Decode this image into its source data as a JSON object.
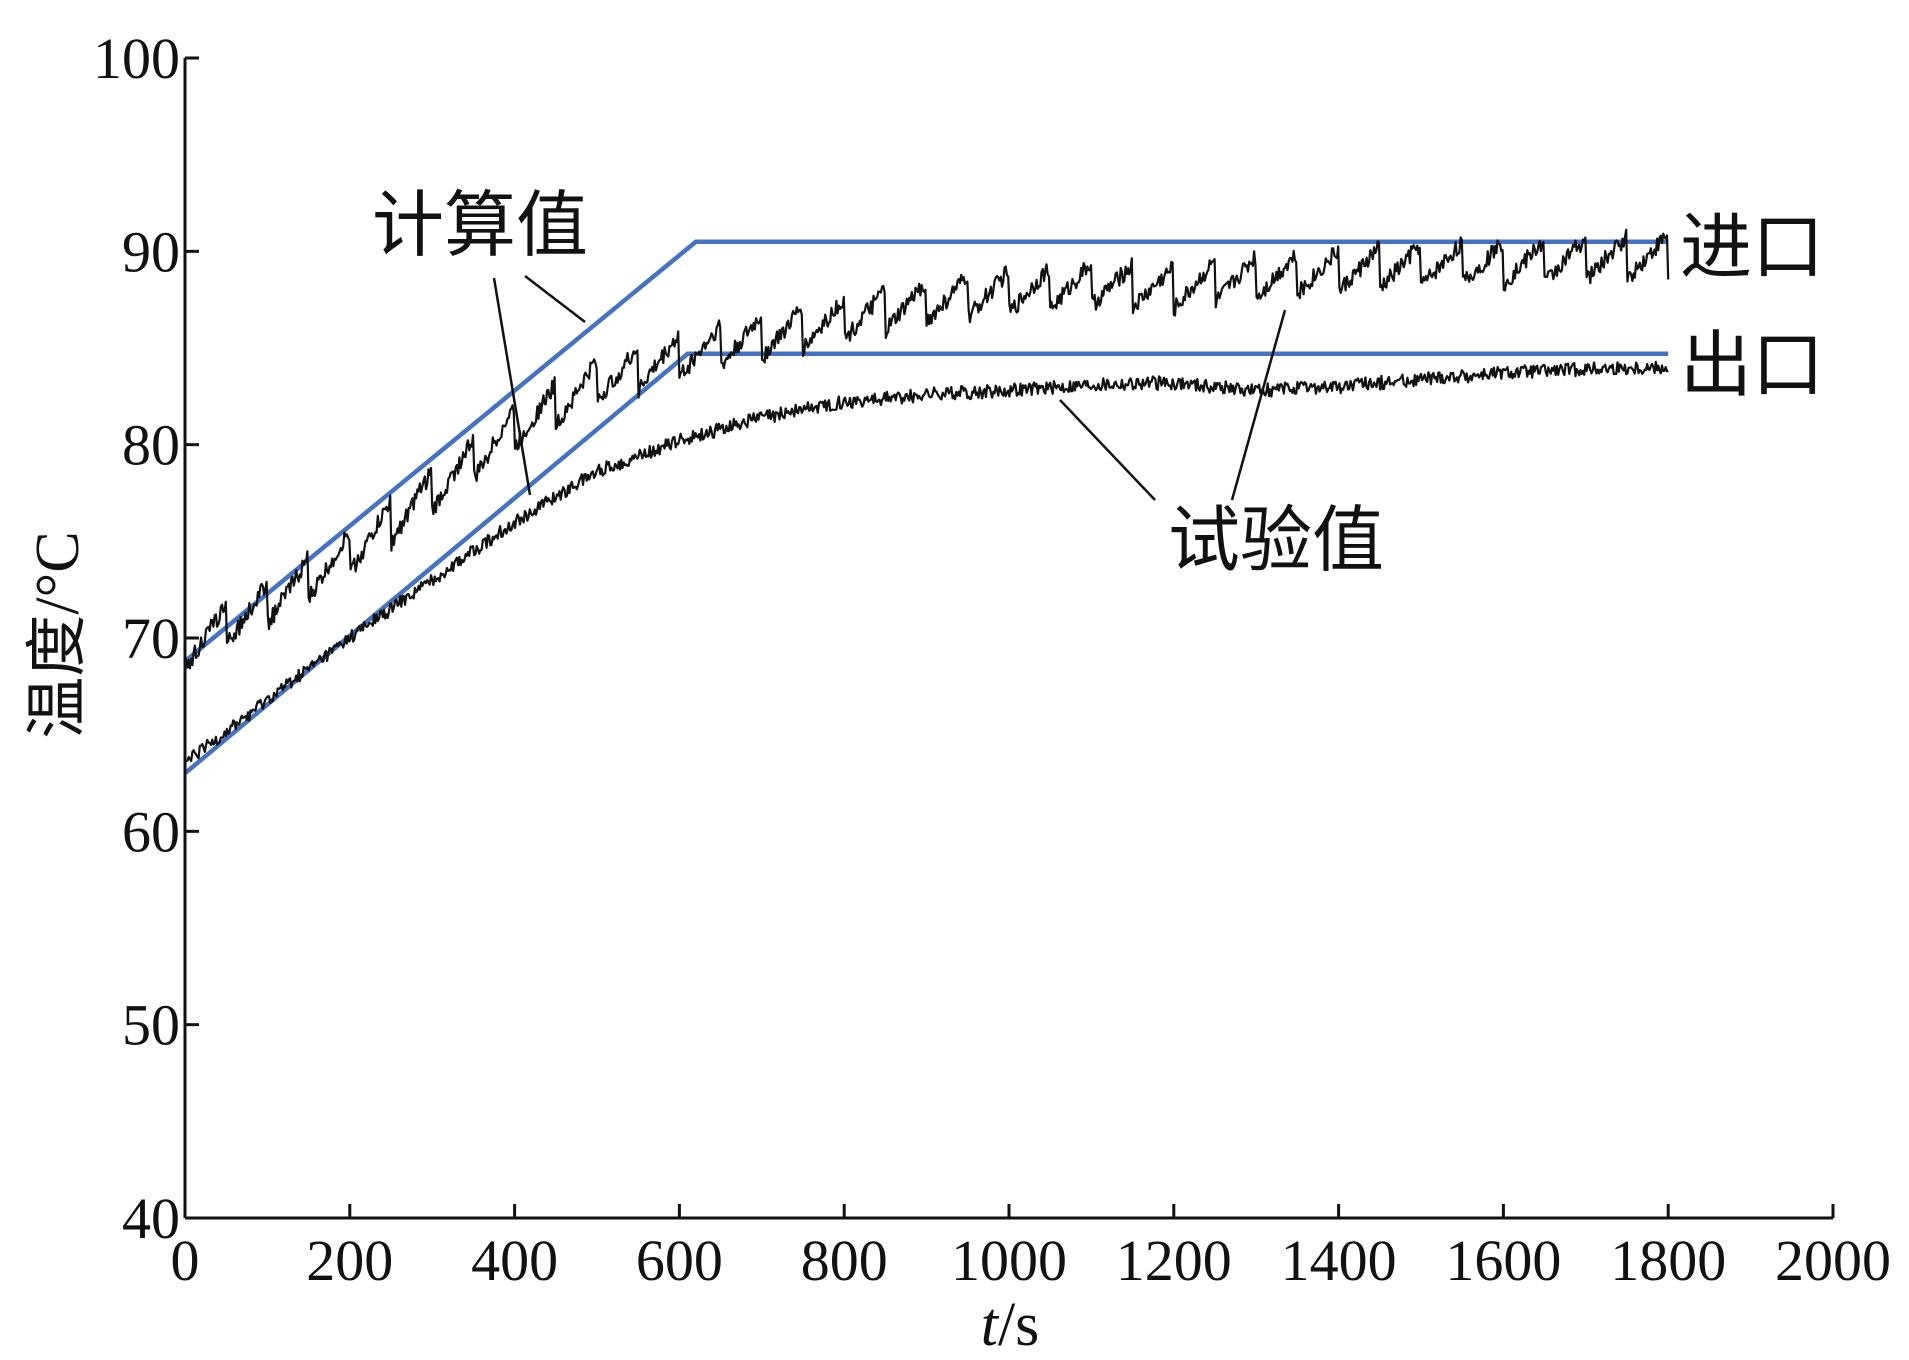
{
  "chart_data": {
    "type": "line",
    "title": "",
    "xlabel_italic": "t",
    "xlabel_unit": "/s",
    "ylabel": "温度/°C",
    "xlim": [
      0,
      2000
    ],
    "ylim": [
      40,
      100
    ],
    "x_ticks": [
      0,
      200,
      400,
      600,
      800,
      1000,
      1200,
      1400,
      1600,
      1800,
      2000
    ],
    "y_ticks": [
      40,
      50,
      60,
      70,
      80,
      90,
      100
    ],
    "grid": false,
    "colors": {
      "calculated": "#4472c4",
      "experimental": "#111111",
      "axis": "#111111"
    },
    "series": [
      {
        "name": "进口",
        "group": "计算值",
        "points": [
          [
            0,
            68.8
          ],
          [
            620,
            90.5
          ],
          [
            1800,
            90.5
          ]
        ]
      },
      {
        "name": "出口",
        "group": "计算值",
        "points": [
          [
            0,
            63.0
          ],
          [
            610,
            84.7
          ],
          [
            1800,
            84.7
          ]
        ]
      },
      {
        "name": "进口",
        "group": "试验值",
        "points": [
          [
            0,
            69.5
          ],
          [
            100,
            71.8
          ],
          [
            200,
            74.4
          ],
          [
            300,
            77.6
          ],
          [
            400,
            80.9
          ],
          [
            500,
            83.3
          ],
          [
            600,
            84.6
          ],
          [
            700,
            85.6
          ],
          [
            800,
            86.5
          ],
          [
            900,
            87.4
          ],
          [
            1000,
            87.9
          ],
          [
            1100,
            88.3
          ],
          [
            1200,
            88.1
          ],
          [
            1300,
            88.7
          ],
          [
            1400,
            89.0
          ],
          [
            1500,
            89.3
          ],
          [
            1600,
            89.4
          ],
          [
            1700,
            89.6
          ],
          [
            1800,
            89.8
          ]
        ]
      },
      {
        "name": "出口",
        "group": "试验值",
        "points": [
          [
            0,
            63.5
          ],
          [
            100,
            66.8
          ],
          [
            200,
            70.0
          ],
          [
            300,
            73.0
          ],
          [
            400,
            76.0
          ],
          [
            500,
            78.6
          ],
          [
            600,
            80.2
          ],
          [
            700,
            81.4
          ],
          [
            800,
            82.2
          ],
          [
            900,
            82.6
          ],
          [
            1000,
            82.8
          ],
          [
            1100,
            83.1
          ],
          [
            1200,
            83.2
          ],
          [
            1300,
            82.8
          ],
          [
            1400,
            83.0
          ],
          [
            1500,
            83.4
          ],
          [
            1600,
            83.7
          ],
          [
            1700,
            83.9
          ],
          [
            1800,
            84.0
          ]
        ]
      }
    ],
    "annotations": {
      "calculated": "计算值",
      "experimental": "试验值",
      "inlet": "进口",
      "outlet": "出口"
    }
  }
}
